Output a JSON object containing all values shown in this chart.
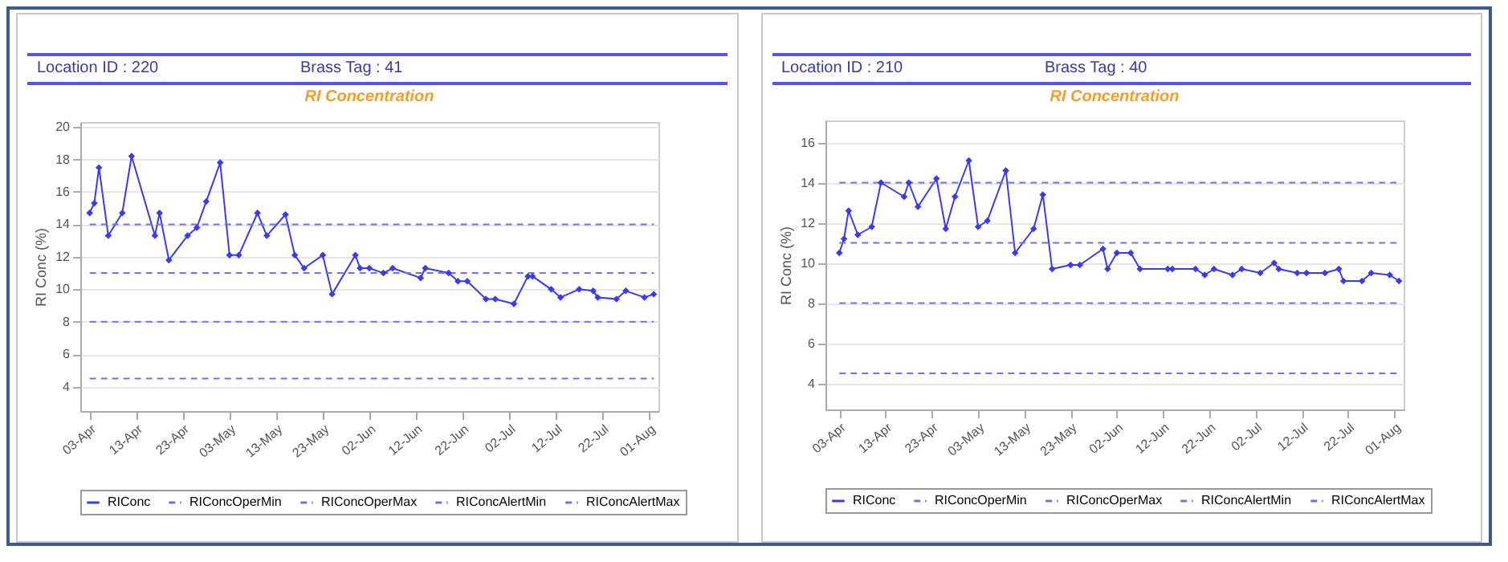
{
  "chart_data": [
    {
      "type": "line",
      "title": "RI Concentration",
      "ylabel": "RI Conc (%)",
      "annotations": [
        "Location ID : 220",
        "Brass Tag : 41"
      ],
      "xlim": [
        "--04-01",
        "--08-03"
      ],
      "xticks": [
        {
          "value": "--04-03",
          "label": "03-Apr"
        },
        {
          "value": "--04-13",
          "label": "13-Apr"
        },
        {
          "value": "--04-23",
          "label": "23-Apr"
        },
        {
          "value": "--05-03",
          "label": "03-May"
        },
        {
          "value": "--05-13",
          "label": "13-May"
        },
        {
          "value": "--05-23",
          "label": "23-May"
        },
        {
          "value": "--06-02",
          "label": "02-Jun"
        },
        {
          "value": "--06-12",
          "label": "12-Jun"
        },
        {
          "value": "--06-22",
          "label": "22-Jun"
        },
        {
          "value": "--07-02",
          "label": "02-Jul"
        },
        {
          "value": "--07-12",
          "label": "12-Jul"
        },
        {
          "value": "--07-22",
          "label": "22-Jul"
        },
        {
          "value": "--08-01",
          "label": "01-Aug"
        }
      ],
      "ylim": [
        2.5,
        20.3
      ],
      "yticks": [
        4,
        6,
        8,
        10,
        12,
        14,
        16,
        18,
        20
      ],
      "grid": "y",
      "legend": "bottom",
      "series": [
        {
          "name": "RIConc",
          "color": "#3a3af0",
          "type": "line",
          "marker": "diamond",
          "line_style": "solid",
          "x": [
            "--04-03",
            "--04-04",
            "--04-05",
            "--04-07",
            "--04-10",
            "--04-12",
            "--04-17",
            "--04-18",
            "--04-20",
            "--04-24",
            "--04-26",
            "--04-28",
            "--05-01",
            "--05-03",
            "--05-05",
            "--05-09",
            "--05-11",
            "--05-15",
            "--05-17",
            "--05-19",
            "--05-23",
            "--05-25",
            "--05-30",
            "--05-31",
            "--06-02",
            "--06-05",
            "--06-07",
            "--06-13",
            "--06-14",
            "--06-19",
            "--06-21",
            "--06-23",
            "--06-27",
            "--06-29",
            "--07-03",
            "--07-06",
            "--07-07",
            "--07-11",
            "--07-13",
            "--07-17",
            "--07-20",
            "--07-21",
            "--07-25",
            "--07-27",
            "--07-31",
            "--08-02"
          ],
          "values": [
            14.7,
            15.3,
            17.5,
            13.3,
            14.7,
            18.2,
            13.3,
            14.7,
            11.8,
            13.3,
            13.8,
            15.4,
            17.8,
            12.1,
            12.1,
            14.7,
            13.3,
            14.6,
            12.1,
            11.3,
            12.1,
            9.7,
            12.1,
            11.3,
            11.3,
            11.0,
            11.3,
            10.7,
            11.3,
            11.0,
            10.5,
            10.5,
            9.4,
            9.4,
            9.1,
            10.8,
            10.8,
            10.0,
            9.5,
            10.0,
            9.9,
            9.5,
            9.4,
            9.9,
            9.5,
            9.7
          ]
        },
        {
          "name": "RIConcOperMin",
          "color": "#7070f0",
          "type": "line",
          "marker": "none",
          "line_style": "dashed",
          "x": [
            "--04-03",
            "--08-02"
          ],
          "values": [
            8,
            8
          ]
        },
        {
          "name": "RIConcOperMax",
          "color": "#7070f0",
          "type": "line",
          "marker": "none",
          "line_style": "dashed",
          "x": [
            "--04-03",
            "--08-02"
          ],
          "values": [
            11,
            11
          ]
        },
        {
          "name": "RIConcAlertMin",
          "color": "#7070f0",
          "type": "line",
          "marker": "none",
          "line_style": "dashed",
          "x": [
            "--04-03",
            "--08-02"
          ],
          "values": [
            4.5,
            4.5
          ]
        },
        {
          "name": "RIConcAlertMax",
          "color": "#7070f0",
          "type": "line",
          "marker": "none",
          "line_style": "dashed",
          "x": [
            "--04-03",
            "--08-02"
          ],
          "values": [
            14,
            14
          ]
        }
      ]
    },
    {
      "type": "line",
      "title": "RI Concentration",
      "ylabel": "RI Conc (%)",
      "annotations": [
        "Location ID : 210",
        "Brass Tag : 40"
      ],
      "xlim": [
        "--03-31",
        "--08-03"
      ],
      "xticks": [
        {
          "value": "--04-03",
          "label": "03-Apr"
        },
        {
          "value": "--04-13",
          "label": "13-Apr"
        },
        {
          "value": "--04-23",
          "label": "23-Apr"
        },
        {
          "value": "--05-03",
          "label": "03-May"
        },
        {
          "value": "--05-13",
          "label": "13-May"
        },
        {
          "value": "--05-23",
          "label": "23-May"
        },
        {
          "value": "--06-02",
          "label": "02-Jun"
        },
        {
          "value": "--06-12",
          "label": "12-Jun"
        },
        {
          "value": "--06-22",
          "label": "22-Jun"
        },
        {
          "value": "--07-02",
          "label": "02-Jul"
        },
        {
          "value": "--07-12",
          "label": "12-Jul"
        },
        {
          "value": "--07-22",
          "label": "22-Jul"
        },
        {
          "value": "--08-01",
          "label": "01-Aug"
        }
      ],
      "ylim": [
        2.7,
        17.1
      ],
      "yticks": [
        4,
        6,
        8,
        10,
        12,
        14,
        16
      ],
      "grid": "y",
      "legend": "bottom",
      "series": [
        {
          "name": "RIConc",
          "color": "#3a3af0",
          "type": "line",
          "marker": "diamond",
          "line_style": "solid",
          "x": [
            "--04-03",
            "--04-04",
            "--04-05",
            "--04-07",
            "--04-10",
            "--04-12",
            "--04-17",
            "--04-18",
            "--04-20",
            "--04-24",
            "--04-26",
            "--04-28",
            "--05-01",
            "--05-03",
            "--05-05",
            "--05-09",
            "--05-11",
            "--05-15",
            "--05-17",
            "--05-19",
            "--05-23",
            "--05-25",
            "--05-30",
            "--05-31",
            "--06-02",
            "--06-05",
            "--06-07",
            "--06-13",
            "--06-14",
            "--06-19",
            "--06-21",
            "--06-23",
            "--06-27",
            "--06-29",
            "--07-03",
            "--07-06",
            "--07-07",
            "--07-11",
            "--07-13",
            "--07-17",
            "--07-20",
            "--07-21",
            "--07-25",
            "--07-27",
            "--07-31",
            "--08-02"
          ],
          "values": [
            10.5,
            11.2,
            12.6,
            11.4,
            11.8,
            14.0,
            13.3,
            14.0,
            12.8,
            14.2,
            11.7,
            13.3,
            15.1,
            11.8,
            12.1,
            14.6,
            10.5,
            11.7,
            13.4,
            9.7,
            9.9,
            9.9,
            10.7,
            9.7,
            10.5,
            10.5,
            9.7,
            9.7,
            9.7,
            9.7,
            9.4,
            9.7,
            9.4,
            9.7,
            9.5,
            10.0,
            9.7,
            9.5,
            9.5,
            9.5,
            9.7,
            9.1,
            9.1,
            9.5,
            9.4,
            9.1
          ]
        },
        {
          "name": "RIConcOperMin",
          "color": "#7070f0",
          "type": "line",
          "marker": "none",
          "line_style": "dashed",
          "x": [
            "--04-03",
            "--08-02"
          ],
          "values": [
            8,
            8
          ]
        },
        {
          "name": "RIConcOperMax",
          "color": "#7070f0",
          "type": "line",
          "marker": "none",
          "line_style": "dashed",
          "x": [
            "--04-03",
            "--08-02"
          ],
          "values": [
            11,
            11
          ]
        },
        {
          "name": "RIConcAlertMin",
          "color": "#7070f0",
          "type": "line",
          "marker": "none",
          "line_style": "dashed",
          "x": [
            "--04-03",
            "--08-02"
          ],
          "values": [
            4.5,
            4.5
          ]
        },
        {
          "name": "RIConcAlertMax",
          "color": "#7070f0",
          "type": "line",
          "marker": "none",
          "line_style": "dashed",
          "x": [
            "--04-03",
            "--08-02"
          ],
          "values": [
            14,
            14
          ]
        }
      ]
    }
  ]
}
